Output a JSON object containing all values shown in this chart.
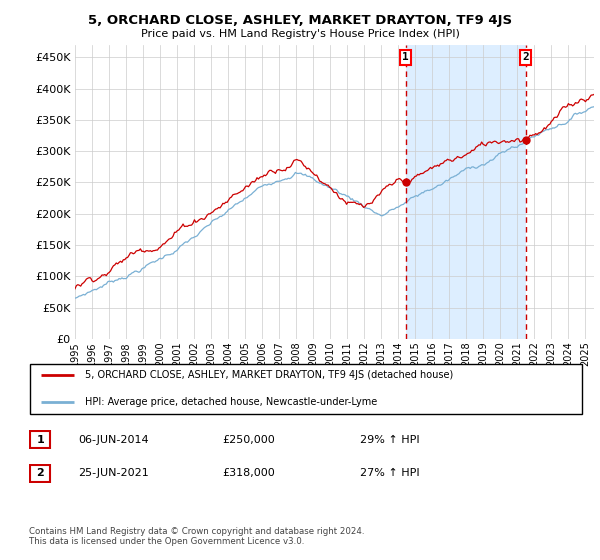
{
  "title": "5, ORCHARD CLOSE, ASHLEY, MARKET DRAYTON, TF9 4JS",
  "subtitle": "Price paid vs. HM Land Registry's House Price Index (HPI)",
  "ylim": [
    0,
    470000
  ],
  "yticks": [
    0,
    50000,
    100000,
    150000,
    200000,
    250000,
    300000,
    350000,
    400000,
    450000
  ],
  "sale1_date": 2014.44,
  "sale1_price": 250000,
  "sale1_label": "1",
  "sale2_date": 2021.48,
  "sale2_price": 318000,
  "sale2_label": "2",
  "line_color_red": "#cc0000",
  "line_color_blue": "#7ab0d4",
  "shade_color": "#ddeeff",
  "vline_color": "#cc0000",
  "grid_color": "#cccccc",
  "legend_line1": "5, ORCHARD CLOSE, ASHLEY, MARKET DRAYTON, TF9 4JS (detached house)",
  "legend_line2": "HPI: Average price, detached house, Newcastle-under-Lyme",
  "table_row1": [
    "1",
    "06-JUN-2014",
    "£250,000",
    "29% ↑ HPI"
  ],
  "table_row2": [
    "2",
    "25-JUN-2021",
    "£318,000",
    "27% ↑ HPI"
  ],
  "footer": "Contains HM Land Registry data © Crown copyright and database right 2024.\nThis data is licensed under the Open Government Licence v3.0."
}
